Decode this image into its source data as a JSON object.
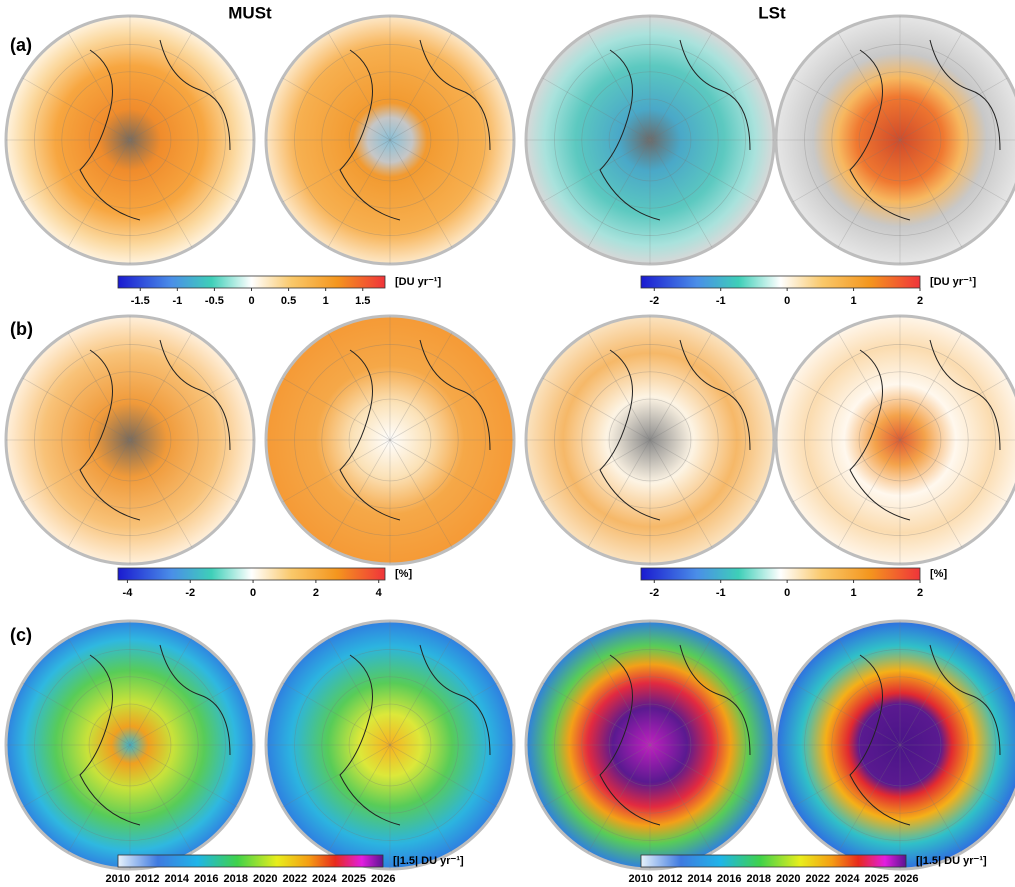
{
  "column_titles": [
    "MUSt",
    "LSt"
  ],
  "panel_labels": [
    "(a)",
    "(b)",
    "(c)"
  ],
  "colorbars": [
    {
      "scale": "diverging",
      "lim": [
        -1.8,
        1.8
      ],
      "ticks": [
        -1.5,
        -1,
        -0.5,
        0,
        0.5,
        1,
        1.5
      ],
      "unit": "[DU yr⁻¹]"
    },
    {
      "scale": "diverging",
      "lim": [
        -2.2,
        2
      ],
      "ticks": [
        -2,
        -1,
        0,
        1,
        2
      ],
      "unit": "[DU yr⁻¹]"
    },
    {
      "scale": "diverging",
      "lim": [
        -4.3,
        4.2
      ],
      "ticks": [
        -4,
        -2,
        0,
        2,
        4
      ],
      "unit": "[%]"
    },
    {
      "scale": "diverging",
      "lim": [
        -2.2,
        2
      ],
      "ticks": [
        -2,
        -1,
        0,
        1,
        2
      ],
      "unit": "[%]"
    },
    {
      "scale": "sequential",
      "categories": [
        "2010",
        "2012",
        "2014",
        "2016",
        "2018",
        "2020",
        "2022",
        "2024",
        "2025",
        "2026"
      ],
      "unit": "[|1.5| DU yr⁻¹]"
    },
    {
      "scale": "sequential",
      "categories": [
        "2010",
        "2012",
        "2014",
        "2016",
        "2018",
        "2020",
        "2022",
        "2024",
        "2025",
        "2026"
      ],
      "unit": "[|1.5| DU yr⁻¹]"
    }
  ]
}
